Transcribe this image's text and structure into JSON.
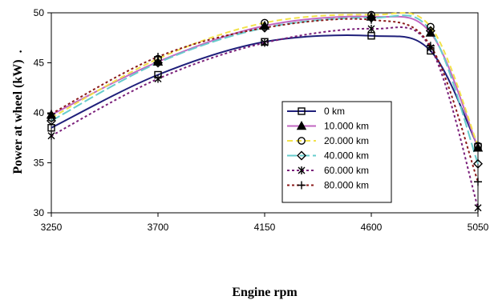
{
  "chart_data": {
    "type": "line",
    "xlabel": "Engine rpm",
    "ylabel": "Power at wheel (kW)",
    "ylabel_suffix": ".",
    "x": [
      3250,
      3700,
      4150,
      4600,
      4850,
      5050
    ],
    "x_ticks": [
      3250,
      3700,
      4150,
      4600,
      5050
    ],
    "xlim": [
      3250,
      5050
    ],
    "ylim": [
      30,
      50
    ],
    "y_ticks": [
      30,
      35,
      40,
      45,
      50
    ],
    "grid": false,
    "legend_position": "center-right",
    "series": [
      {
        "name": "0 km",
        "values": [
          38.5,
          43.8,
          47.1,
          47.7,
          46.2,
          36.6
        ],
        "color": "#1f1f7a",
        "dash": "solid",
        "marker": "square"
      },
      {
        "name": "10.000 km",
        "values": [
          39.8,
          45.1,
          48.7,
          49.6,
          48.0,
          36.5
        ],
        "color": "#c266c2",
        "dash": "solid",
        "marker": "triangle"
      },
      {
        "name": "20.000 km",
        "values": [
          39.5,
          45.4,
          49.0,
          49.8,
          48.6,
          36.7
        ],
        "color": "#f2e24a",
        "dash": "dashed",
        "marker": "circle"
      },
      {
        "name": "40.000 km",
        "values": [
          39.2,
          45.0,
          48.5,
          49.5,
          48.2,
          34.9
        ],
        "color": "#66cccc",
        "dash": "longdash",
        "marker": "diamond"
      },
      {
        "name": "60.000 km",
        "values": [
          37.7,
          43.4,
          47.0,
          48.4,
          46.5,
          30.5
        ],
        "color": "#7a1f7a",
        "dash": "dotted",
        "marker": "asterisk"
      },
      {
        "name": "80.000 km",
        "values": [
          39.9,
          45.6,
          48.5,
          49.3,
          46.7,
          33.1
        ],
        "color": "#8b1a1a",
        "dash": "dotted",
        "marker": "plus"
      }
    ]
  }
}
